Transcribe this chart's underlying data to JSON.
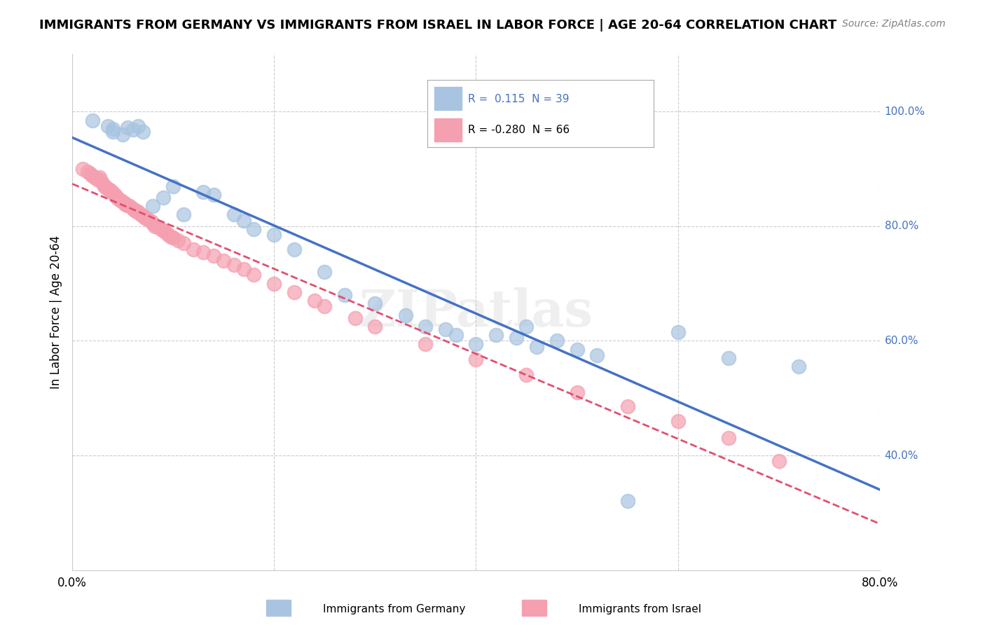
{
  "title": "IMMIGRANTS FROM GERMANY VS IMMIGRANTS FROM ISRAEL IN LABOR FORCE | AGE 20-64 CORRELATION CHART",
  "source": "Source: ZipAtlas.com",
  "xlabel": "",
  "ylabel": "In Labor Force | Age 20-64",
  "xlim": [
    0.0,
    0.8
  ],
  "ylim": [
    0.2,
    1.1
  ],
  "x_ticks": [
    0.0,
    0.8
  ],
  "x_tick_labels": [
    "0.0%",
    "80.0%"
  ],
  "y_ticks": [
    0.4,
    0.6,
    0.8,
    1.0
  ],
  "y_tick_labels": [
    "40.0%",
    "60.0%",
    "80.0%",
    "100.0%"
  ],
  "germany_R": 0.115,
  "germany_N": 39,
  "israel_R": -0.28,
  "israel_N": 66,
  "germany_color": "#a8c4e0",
  "israel_color": "#f4a0b0",
  "germany_line_color": "#4472c4",
  "israel_line_color": "#e05070",
  "watermark": "ZIPatlas",
  "germany_scatter_x": [
    0.02,
    0.035,
    0.04,
    0.04,
    0.05,
    0.055,
    0.06,
    0.065,
    0.07,
    0.08,
    0.09,
    0.1,
    0.11,
    0.13,
    0.14,
    0.16,
    0.17,
    0.18,
    0.2,
    0.22,
    0.25,
    0.27,
    0.3,
    0.33,
    0.35,
    0.37,
    0.38,
    0.4,
    0.42,
    0.44,
    0.45,
    0.46,
    0.48,
    0.5,
    0.52,
    0.55,
    0.6,
    0.65,
    0.72
  ],
  "germany_scatter_y": [
    0.985,
    0.975,
    0.97,
    0.965,
    0.96,
    0.972,
    0.968,
    0.975,
    0.965,
    0.835,
    0.85,
    0.87,
    0.82,
    0.86,
    0.855,
    0.82,
    0.81,
    0.795,
    0.785,
    0.76,
    0.72,
    0.68,
    0.665,
    0.645,
    0.625,
    0.62,
    0.61,
    0.595,
    0.61,
    0.605,
    0.625,
    0.59,
    0.6,
    0.585,
    0.575,
    0.32,
    0.615,
    0.57,
    0.555
  ],
  "israel_scatter_x": [
    0.01,
    0.015,
    0.018,
    0.02,
    0.022,
    0.025,
    0.027,
    0.028,
    0.03,
    0.032,
    0.033,
    0.035,
    0.036,
    0.038,
    0.04,
    0.042,
    0.043,
    0.044,
    0.046,
    0.048,
    0.05,
    0.052,
    0.053,
    0.055,
    0.057,
    0.06,
    0.062,
    0.064,
    0.065,
    0.068,
    0.07,
    0.072,
    0.075,
    0.078,
    0.08,
    0.082,
    0.085,
    0.088,
    0.09,
    0.092,
    0.095,
    0.098,
    0.1,
    0.105,
    0.11,
    0.12,
    0.13,
    0.14,
    0.15,
    0.16,
    0.17,
    0.18,
    0.2,
    0.22,
    0.24,
    0.25,
    0.28,
    0.3,
    0.35,
    0.4,
    0.45,
    0.5,
    0.55,
    0.6,
    0.65,
    0.7
  ],
  "israel_scatter_y": [
    0.9,
    0.895,
    0.892,
    0.888,
    0.885,
    0.882,
    0.885,
    0.88,
    0.875,
    0.87,
    0.868,
    0.865,
    0.865,
    0.862,
    0.858,
    0.855,
    0.852,
    0.85,
    0.848,
    0.845,
    0.842,
    0.84,
    0.838,
    0.836,
    0.835,
    0.83,
    0.828,
    0.825,
    0.825,
    0.82,
    0.818,
    0.815,
    0.812,
    0.808,
    0.805,
    0.8,
    0.798,
    0.795,
    0.792,
    0.79,
    0.785,
    0.782,
    0.78,
    0.775,
    0.77,
    0.76,
    0.755,
    0.748,
    0.74,
    0.732,
    0.725,
    0.715,
    0.7,
    0.685,
    0.67,
    0.66,
    0.64,
    0.625,
    0.595,
    0.568,
    0.54,
    0.51,
    0.485,
    0.46,
    0.43,
    0.39
  ],
  "legend_germany_label": "Immigrants from Germany",
  "legend_israel_label": "Immigrants from Israel"
}
